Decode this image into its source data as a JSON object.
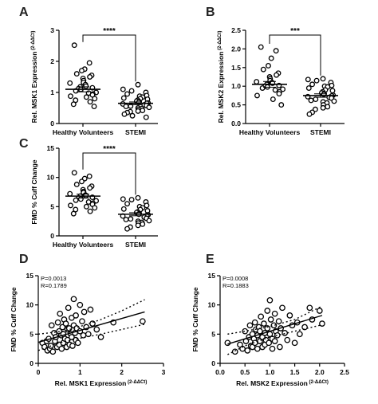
{
  "chart_data": [
    {
      "panel": "A",
      "type": "scatter",
      "ylabel": "Rel. MSK1 Expression",
      "ylabel_sup": "(2-ΔΔCt)",
      "yticks": [
        0,
        1,
        2,
        3
      ],
      "ylim": [
        0,
        3
      ],
      "categories": [
        "Healthy Volunteers",
        "STEMI"
      ],
      "significance": "****",
      "series": [
        {
          "mean": 1.1,
          "values": [
            2.52,
            1.95,
            1.75,
            1.7,
            1.6,
            1.55,
            1.5,
            1.45,
            1.38,
            1.32,
            1.3,
            1.25,
            1.2,
            1.18,
            1.15,
            1.12,
            1.1,
            1.05,
            1.0,
            0.98,
            0.95,
            0.92,
            0.88,
            0.85,
            0.8,
            0.75,
            0.7,
            0.62,
            0.55
          ]
        },
        {
          "mean": 0.65,
          "values": [
            1.25,
            1.1,
            1.05,
            1.0,
            0.95,
            0.9,
            0.88,
            0.85,
            0.82,
            0.8,
            0.78,
            0.75,
            0.72,
            0.7,
            0.68,
            0.66,
            0.65,
            0.63,
            0.6,
            0.58,
            0.56,
            0.55,
            0.52,
            0.5,
            0.48,
            0.45,
            0.42,
            0.4,
            0.38,
            0.35,
            0.3,
            0.25,
            0.2
          ]
        }
      ]
    },
    {
      "panel": "B",
      "type": "scatter",
      "ylabel": "Rel. MSK2 Expression",
      "ylabel_sup": "(2-ΔΔCt)",
      "yticks": [
        0.0,
        0.5,
        1.0,
        1.5,
        2.0,
        2.5
      ],
      "ylim": [
        0,
        2.5
      ],
      "categories": [
        "Healthy Volunteers",
        "STEMI"
      ],
      "significance": "***",
      "series": [
        {
          "mean": 1.05,
          "values": [
            2.05,
            1.95,
            1.75,
            1.55,
            1.45,
            1.35,
            1.3,
            1.25,
            1.2,
            1.15,
            1.12,
            1.1,
            1.08,
            1.05,
            1.02,
            1.0,
            0.98,
            0.95,
            0.92,
            0.9,
            0.85,
            0.8,
            0.75,
            0.65,
            0.5
          ]
        },
        {
          "mean": 0.75,
          "values": [
            1.2,
            1.18,
            1.15,
            1.1,
            1.05,
            1.02,
            1.0,
            0.98,
            0.95,
            0.9,
            0.88,
            0.85,
            0.82,
            0.8,
            0.78,
            0.76,
            0.74,
            0.72,
            0.7,
            0.68,
            0.65,
            0.62,
            0.6,
            0.58,
            0.55,
            0.5,
            0.45,
            0.42,
            0.38,
            0.3,
            0.25
          ]
        }
      ]
    },
    {
      "panel": "C",
      "type": "scatter",
      "ylabel": "FMD % Cuff Change",
      "yticks": [
        0,
        5,
        10,
        15
      ],
      "ylim": [
        0,
        15
      ],
      "categories": [
        "Healthy Volunteers",
        "STEMI"
      ],
      "significance": "****",
      "series": [
        {
          "mean": 6.8,
          "values": [
            10.8,
            10.2,
            9.8,
            9.3,
            8.8,
            8.5,
            8.2,
            7.9,
            7.6,
            7.4,
            7.2,
            7.0,
            6.9,
            6.8,
            6.6,
            6.5,
            6.3,
            6.1,
            6.0,
            5.8,
            5.6,
            5.4,
            5.2,
            5.0,
            4.8,
            4.5,
            4.2,
            3.8
          ]
        },
        {
          "mean": 3.7,
          "values": [
            6.5,
            6.3,
            6.2,
            5.8,
            5.5,
            5.2,
            5.0,
            4.8,
            4.6,
            4.5,
            4.3,
            4.1,
            4.0,
            3.8,
            3.7,
            3.6,
            3.5,
            3.4,
            3.2,
            3.0,
            2.9,
            2.8,
            2.6,
            2.5,
            2.3,
            2.2,
            2.0,
            1.8,
            1.5,
            1.2
          ]
        }
      ]
    },
    {
      "panel": "D",
      "type": "scatter",
      "stats": [
        "P=0.0013",
        "R=0.1789"
      ],
      "xlabel": "Rel. MSK1 Expression",
      "xlabel_sup": "(2-ΔΔCt)",
      "ylabel": "FMD % Cuff Change",
      "xticks": [
        0,
        1,
        2,
        3
      ],
      "yticks": [
        0,
        5,
        10,
        15
      ],
      "xlim": [
        0,
        3
      ],
      "ylim": [
        0,
        15
      ],
      "fit": {
        "x": [
          0,
          2.55
        ],
        "y": [
          3.6,
          8.8
        ]
      },
      "ci_upper": {
        "x": [
          0,
          0.6,
          1.0,
          1.5,
          2.0,
          2.55
        ],
        "y": [
          5.0,
          5.5,
          6.3,
          7.5,
          9.0,
          10.9
        ]
      },
      "ci_lower": {
        "x": [
          0,
          0.5,
          1.0,
          1.5,
          2.0,
          2.55
        ],
        "y": [
          2.2,
          3.5,
          4.3,
          5.0,
          5.8,
          6.7
        ]
      },
      "points": [
        [
          0.1,
          3.5
        ],
        [
          0.15,
          2.8
        ],
        [
          0.2,
          3.8
        ],
        [
          0.22,
          2.2
        ],
        [
          0.25,
          4.2
        ],
        [
          0.28,
          2.5
        ],
        [
          0.3,
          3.0
        ],
        [
          0.32,
          6.5
        ],
        [
          0.35,
          2.0
        ],
        [
          0.38,
          5.2
        ],
        [
          0.4,
          3.8
        ],
        [
          0.42,
          4.5
        ],
        [
          0.45,
          2.8
        ],
        [
          0.47,
          7.0
        ],
        [
          0.5,
          5.5
        ],
        [
          0.5,
          3.2
        ],
        [
          0.52,
          8.5
        ],
        [
          0.55,
          4.8
        ],
        [
          0.56,
          2.5
        ],
        [
          0.58,
          6.2
        ],
        [
          0.6,
          5.0
        ],
        [
          0.6,
          3.5
        ],
        [
          0.62,
          7.5
        ],
        [
          0.64,
          4.2
        ],
        [
          0.66,
          6.8
        ],
        [
          0.68,
          2.8
        ],
        [
          0.7,
          5.8
        ],
        [
          0.7,
          4.0
        ],
        [
          0.72,
          9.5
        ],
        [
          0.74,
          6.0
        ],
        [
          0.75,
          3.2
        ],
        [
          0.78,
          5.0
        ],
        [
          0.8,
          7.8
        ],
        [
          0.8,
          4.5
        ],
        [
          0.82,
          3.0
        ],
        [
          0.85,
          11.0
        ],
        [
          0.85,
          6.5
        ],
        [
          0.88,
          5.2
        ],
        [
          0.9,
          8.2
        ],
        [
          0.9,
          4.0
        ],
        [
          0.92,
          6.0
        ],
        [
          0.95,
          3.5
        ],
        [
          1.0,
          10.0
        ],
        [
          1.0,
          5.5
        ],
        [
          1.05,
          7.2
        ],
        [
          1.08,
          4.8
        ],
        [
          1.1,
          8.8
        ],
        [
          1.15,
          6.2
        ],
        [
          1.2,
          5.0
        ],
        [
          1.25,
          9.2
        ],
        [
          1.3,
          6.8
        ],
        [
          1.4,
          5.8
        ],
        [
          1.5,
          4.5
        ],
        [
          1.8,
          7.0
        ],
        [
          2.5,
          7.2
        ]
      ]
    },
    {
      "panel": "E",
      "type": "scatter",
      "stats": [
        "P=0.0008",
        "R=0.1883"
      ],
      "xlabel": "Rel. MSK2 Expression",
      "xlabel_sup": "(2-ΔΔCt)",
      "ylabel": "FMD % Cuff Change",
      "xticks": [
        0.0,
        0.5,
        1.0,
        1.5,
        2.0,
        2.5
      ],
      "yticks": [
        0,
        5,
        10,
        15
      ],
      "xlim": [
        0,
        2.5
      ],
      "ylim": [
        0,
        15
      ],
      "fit": {
        "x": [
          0.15,
          2.05
        ],
        "y": [
          3.3,
          8.2
        ]
      },
      "ci_upper": {
        "x": [
          0.15,
          0.5,
          1.0,
          1.5,
          2.05
        ],
        "y": [
          5.0,
          5.5,
          6.3,
          7.5,
          9.8
        ]
      },
      "ci_lower": {
        "x": [
          0.15,
          0.5,
          1.0,
          1.5,
          2.05
        ],
        "y": [
          1.5,
          3.0,
          4.5,
          5.5,
          6.6
        ]
      },
      "points": [
        [
          0.15,
          3.5
        ],
        [
          0.3,
          2.0
        ],
        [
          0.4,
          3.2
        ],
        [
          0.45,
          2.5
        ],
        [
          0.5,
          5.5
        ],
        [
          0.52,
          3.8
        ],
        [
          0.55,
          2.2
        ],
        [
          0.58,
          4.5
        ],
        [
          0.6,
          6.5
        ],
        [
          0.62,
          3.0
        ],
        [
          0.65,
          5.0
        ],
        [
          0.65,
          2.8
        ],
        [
          0.68,
          4.2
        ],
        [
          0.7,
          7.0
        ],
        [
          0.7,
          3.5
        ],
        [
          0.72,
          5.8
        ],
        [
          0.75,
          4.8
        ],
        [
          0.75,
          2.5
        ],
        [
          0.78,
          6.2
        ],
        [
          0.8,
          3.8
        ],
        [
          0.8,
          5.5
        ],
        [
          0.82,
          8.0
        ],
        [
          0.85,
          4.5
        ],
        [
          0.85,
          2.8
        ],
        [
          0.88,
          6.8
        ],
        [
          0.9,
          3.2
        ],
        [
          0.9,
          5.2
        ],
        [
          0.92,
          4.0
        ],
        [
          0.95,
          9.0
        ],
        [
          0.95,
          6.0
        ],
        [
          0.98,
          3.5
        ],
        [
          1.0,
          10.8
        ],
        [
          1.0,
          5.0
        ],
        [
          1.02,
          7.5
        ],
        [
          1.05,
          4.2
        ],
        [
          1.05,
          2.5
        ],
        [
          1.08,
          6.5
        ],
        [
          1.1,
          8.5
        ],
        [
          1.1,
          3.8
        ],
        [
          1.12,
          5.5
        ],
        [
          1.15,
          4.8
        ],
        [
          1.18,
          7.2
        ],
        [
          1.2,
          2.8
        ],
        [
          1.22,
          6.0
        ],
        [
          1.25,
          9.5
        ],
        [
          1.3,
          5.2
        ],
        [
          1.35,
          4.0
        ],
        [
          1.4,
          8.2
        ],
        [
          1.45,
          6.5
        ],
        [
          1.5,
          3.5
        ],
        [
          1.55,
          7.0
        ],
        [
          1.6,
          5.0
        ],
        [
          1.7,
          6.2
        ],
        [
          1.8,
          9.5
        ],
        [
          1.85,
          7.5
        ],
        [
          2.0,
          9.0
        ],
        [
          2.05,
          6.8
        ]
      ]
    }
  ]
}
